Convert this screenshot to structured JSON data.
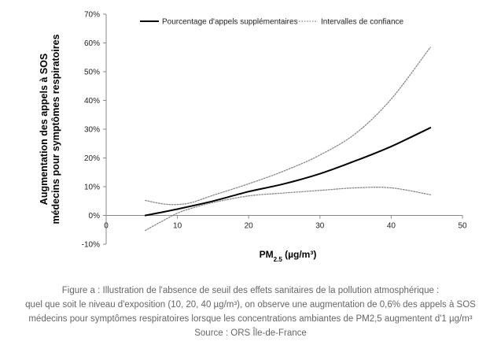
{
  "chart_data": {
    "type": "line",
    "xlabel": "PM",
    "xlabel_sub": "2.5",
    "xlabel_unit": " (µg/m³)",
    "ylabel": [
      "Augmentation des appels à SOS",
      "médecins pour symptômes respiratoires"
    ],
    "xlim": [
      0,
      50
    ],
    "ylim": [
      -0.1,
      0.7
    ],
    "xticks": [
      "0",
      "10",
      "20",
      "30",
      "40",
      "50"
    ],
    "yticks": [
      "-10%",
      "0%",
      "10%",
      "20%",
      "30%",
      "40%",
      "50%",
      "60%",
      "70%"
    ],
    "legend_position": "top",
    "series": [
      {
        "name": "Pourcentage d'appels supplémentaires",
        "style": "solid",
        "color": "#000000",
        "x": [
          5.5,
          10,
          15,
          20,
          25,
          30,
          35,
          40,
          45.5
        ],
        "y": [
          0.0,
          0.022,
          0.05,
          0.083,
          0.11,
          0.145,
          0.19,
          0.24,
          0.305
        ]
      },
      {
        "name": "Intervalles de confiance",
        "style": "dotted",
        "color": "#888888",
        "x": [
          5.5,
          8,
          10,
          12,
          15,
          20,
          25,
          30,
          35,
          40,
          45.5
        ],
        "y": [
          0.052,
          0.04,
          0.038,
          0.045,
          0.07,
          0.11,
          0.155,
          0.21,
          0.285,
          0.405,
          0.585
        ]
      },
      {
        "name": "",
        "style": "dotted",
        "color": "#888888",
        "x": [
          5.5,
          8,
          10,
          12,
          15,
          20,
          25,
          30,
          35,
          40,
          45.5
        ],
        "y": [
          -0.052,
          -0.018,
          0.008,
          0.025,
          0.045,
          0.068,
          0.078,
          0.087,
          0.096,
          0.096,
          0.072
        ]
      }
    ]
  },
  "caption": {
    "line1": "Figure a : Illustration de l'absence de seuil des effets sanitaires de la pollution atmosphérique :",
    "line2": "quel que soit le niveau d'exposition (10, 20, 40 µg/m³), on observe une augmentation de 0,6% des appels à SOS",
    "line3": "médecins pour symptômes respiratoires lorsque les concentrations ambiantes de PM2,5 augmentent d'1 µg/m³",
    "line4": "Source : ORS Île-de-France"
  }
}
